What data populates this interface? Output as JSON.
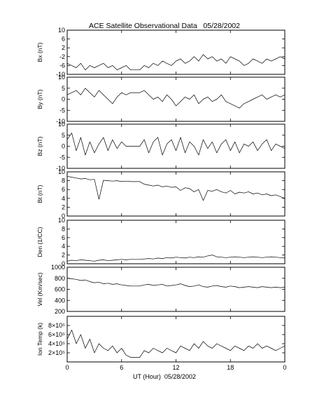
{
  "chart_data": {
    "type": "line",
    "title": "ACE Satellite Observational Data   05/28/2002",
    "xlabel": "UT (Hour)  05/28/2002",
    "x_ticks": [
      "0",
      "6",
      "12",
      "18",
      "0"
    ],
    "xlim": [
      0,
      24
    ],
    "panels": [
      {
        "ylabel": "Bx (nT)",
        "ylim": [
          -10,
          10
        ],
        "y_ticks": [
          "-10",
          "-6",
          "-2",
          "2",
          "6",
          "10"
        ],
        "y_tick_values": [
          -10,
          -6,
          -2,
          2,
          6,
          10
        ],
        "x": [
          0,
          0.5,
          1,
          1.5,
          2,
          2.5,
          3,
          3.5,
          4,
          4.5,
          5,
          5.5,
          6,
          6.5,
          7,
          7.5,
          8,
          8.5,
          9,
          9.5,
          10,
          10.5,
          11,
          11.5,
          12,
          12.5,
          13,
          13.5,
          14,
          14.5,
          15,
          15.5,
          16,
          16.5,
          17,
          17.5,
          18,
          18.5,
          19,
          19.5,
          20,
          20.5,
          21,
          21.5,
          22,
          22.5,
          23,
          23.5,
          24
        ],
        "values": [
          -5,
          -6,
          -7,
          -5,
          -8,
          -6,
          -7,
          -6,
          -5,
          -7,
          -6,
          -8,
          -7,
          -6,
          -8,
          -8,
          -8,
          -6,
          -7,
          -5,
          -6,
          -4,
          -5,
          -6,
          -4,
          -3,
          -5,
          -4,
          -2,
          -4,
          -1,
          -3,
          -2,
          -4,
          -3,
          -5,
          -2,
          -3,
          -4,
          -6,
          -5,
          -3,
          -4,
          -5,
          -3,
          -4,
          -3,
          -2,
          -3
        ]
      },
      {
        "ylabel": "By (nT)",
        "ylim": [
          -10,
          10
        ],
        "y_ticks": [
          "-10",
          "-5",
          "0",
          "5",
          "10"
        ],
        "y_tick_values": [
          -10,
          -5,
          0,
          5,
          10
        ],
        "x": [
          0,
          0.5,
          1,
          1.5,
          2,
          2.5,
          3,
          3.5,
          4,
          4.5,
          5,
          5.5,
          6,
          6.5,
          7,
          7.5,
          8,
          8.5,
          9,
          9.5,
          10,
          10.5,
          11,
          11.5,
          12,
          12.5,
          13,
          13.5,
          14,
          14.5,
          15,
          15.5,
          16,
          16.5,
          17,
          17.5,
          18,
          18.5,
          19,
          19.5,
          20,
          20.5,
          21,
          21.5,
          22,
          22.5,
          23,
          23.5,
          24
        ],
        "values": [
          2,
          3,
          4,
          2,
          5,
          3,
          1,
          4,
          2,
          0,
          -2,
          1,
          3,
          2,
          3,
          3,
          3,
          4,
          2,
          0,
          1,
          -1,
          2,
          0,
          -3,
          -1,
          1,
          0,
          2,
          -2,
          0,
          1,
          -1,
          0,
          2,
          -1,
          -2,
          -3,
          -4,
          -2,
          -1,
          0,
          1,
          2,
          0,
          1,
          2,
          1,
          2
        ]
      },
      {
        "ylabel": "Bz (nT)",
        "ylim": [
          -10,
          10
        ],
        "y_ticks": [
          "-10",
          "-5",
          "0",
          "5",
          "10"
        ],
        "y_tick_values": [
          -10,
          -5,
          0,
          5,
          10
        ],
        "x": [
          0,
          0.5,
          1,
          1.5,
          2,
          2.5,
          3,
          3.5,
          4,
          4.5,
          5,
          5.5,
          6,
          6.5,
          7,
          7.5,
          8,
          8.5,
          9,
          9.5,
          10,
          10.5,
          11,
          11.5,
          12,
          12.5,
          13,
          13.5,
          14,
          14.5,
          15,
          15.5,
          16,
          16.5,
          17,
          17.5,
          18,
          18.5,
          19,
          19.5,
          20,
          20.5,
          21,
          21.5,
          22,
          22.5,
          23,
          23.5,
          24
        ],
        "values": [
          3,
          6,
          -2,
          4,
          -4,
          2,
          -3,
          1,
          4,
          -2,
          3,
          -1,
          2,
          0,
          0,
          0,
          0,
          3,
          -3,
          2,
          4,
          -4,
          1,
          3,
          -2,
          4,
          -3,
          2,
          0,
          -4,
          3,
          -1,
          2,
          -3,
          1,
          3,
          -2,
          2,
          -3,
          1,
          0,
          2,
          -2,
          1,
          3,
          -2,
          1,
          0,
          -1
        ]
      },
      {
        "ylabel": "Bt (nT)",
        "ylim": [
          0,
          10
        ],
        "y_ticks": [
          "0",
          "2",
          "4",
          "6",
          "8",
          "10"
        ],
        "y_tick_values": [
          0,
          2,
          4,
          6,
          8,
          10
        ],
        "x": [
          0,
          0.5,
          1,
          1.5,
          2,
          2.5,
          3,
          3.5,
          4,
          4.5,
          5,
          5.5,
          6,
          6.5,
          7,
          7.5,
          8,
          8.5,
          9,
          9.5,
          10,
          10.5,
          11,
          11.5,
          12,
          12.5,
          13,
          13.5,
          14,
          14.5,
          15,
          15.5,
          16,
          16.5,
          17,
          17.5,
          18,
          18.5,
          19,
          19.5,
          20,
          20.5,
          21,
          21.5,
          22,
          22.5,
          23,
          23.5,
          24
        ],
        "values": [
          9,
          8.8,
          8.6,
          8.4,
          8.5,
          8.2,
          8.3,
          3.8,
          8.1,
          8,
          7.9,
          8,
          7.8,
          7.9,
          7.8,
          7.8,
          7.8,
          7.2,
          7,
          6.8,
          7,
          6.6,
          6.8,
          6.5,
          6.6,
          5.8,
          6.4,
          6.2,
          5.5,
          6,
          3.5,
          5.8,
          5.6,
          6,
          5.5,
          5.2,
          5.8,
          5,
          5.4,
          5.2,
          5.5,
          5,
          5.2,
          4.8,
          5,
          4.6,
          4.8,
          4.4,
          4
        ]
      },
      {
        "ylabel": "Den (1/CC)",
        "ylim": [
          0,
          10
        ],
        "y_ticks": [
          "0",
          "2",
          "4",
          "6",
          "8",
          "10"
        ],
        "y_tick_values": [
          0,
          2,
          4,
          6,
          8,
          10
        ],
        "x": [
          0,
          0.5,
          1,
          1.5,
          2,
          2.5,
          3,
          3.5,
          4,
          4.5,
          5,
          5.5,
          6,
          6.5,
          7,
          7.5,
          8,
          8.5,
          9,
          9.5,
          10,
          10.5,
          11,
          11.5,
          12,
          12.5,
          13,
          13.5,
          14,
          14.5,
          15,
          15.5,
          16,
          16.5,
          17,
          17.5,
          18,
          18.5,
          19,
          19.5,
          20,
          20.5,
          21,
          21.5,
          22,
          22.5,
          23,
          23.5,
          24
        ],
        "values": [
          0.6,
          0.8,
          0.7,
          0.9,
          0.8,
          0.7,
          0.6,
          0.8,
          0.9,
          0.7,
          0.8,
          0.9,
          1,
          0.9,
          1,
          1,
          1,
          1.1,
          1.2,
          1.1,
          1.3,
          1.2,
          1.4,
          1.3,
          1.5,
          1.4,
          1.3,
          1.5,
          1.4,
          1.6,
          1.5,
          1.8,
          2,
          1.6,
          1.5,
          1.4,
          1.5,
          1.6,
          1.5,
          1.4,
          1.5,
          1.6,
          1.5,
          1.4,
          1.5,
          1.6,
          1.5,
          1.4,
          1.3
        ]
      },
      {
        "ylabel": "Vel (Km/sec)",
        "ylim": [
          200,
          1000
        ],
        "y_ticks": [
          "200",
          "400",
          "600",
          "800",
          "1000"
        ],
        "y_tick_values": [
          200,
          400,
          600,
          800,
          1000
        ],
        "x": [
          0,
          0.5,
          1,
          1.5,
          2,
          2.5,
          3,
          3.5,
          4,
          4.5,
          5,
          5.5,
          6,
          6.5,
          7,
          7.5,
          8,
          8.5,
          9,
          9.5,
          10,
          10.5,
          11,
          11.5,
          12,
          12.5,
          13,
          13.5,
          14,
          14.5,
          15,
          15.5,
          16,
          16.5,
          17,
          17.5,
          18,
          18.5,
          19,
          19.5,
          20,
          20.5,
          21,
          21.5,
          22,
          22.5,
          23,
          23.5,
          24
        ],
        "values": [
          800,
          790,
          780,
          760,
          770,
          740,
          720,
          730,
          700,
          710,
          690,
          700,
          680,
          670,
          660,
          660,
          660,
          680,
          690,
          670,
          680,
          690,
          660,
          670,
          680,
          700,
          670,
          650,
          660,
          680,
          650,
          640,
          660,
          670,
          650,
          640,
          660,
          650,
          630,
          640,
          650,
          640,
          630,
          650,
          640,
          630,
          640,
          630,
          640
        ]
      },
      {
        "ylabel": "Ion Temp (k)",
        "ylim": [
          0,
          1000000
        ],
        "y_ticks": [
          "2×10⁵",
          "4×10⁵",
          "6×10⁵",
          "8×10⁵"
        ],
        "y_tick_values": [
          200000,
          400000,
          600000,
          800000
        ],
        "x": [
          0,
          0.5,
          1,
          1.5,
          2,
          2.5,
          3,
          3.5,
          4,
          4.5,
          5,
          5.5,
          6,
          6.5,
          7,
          7.5,
          8,
          8.5,
          9,
          9.5,
          10,
          10.5,
          11,
          11.5,
          12,
          12.5,
          13,
          13.5,
          14,
          14.5,
          15,
          15.5,
          16,
          16.5,
          17,
          17.5,
          18,
          18.5,
          19,
          19.5,
          20,
          20.5,
          21,
          21.5,
          22,
          22.5,
          23,
          23.5,
          24
        ],
        "values": [
          500000,
          700000,
          400000,
          600000,
          300000,
          500000,
          200000,
          400000,
          300000,
          250000,
          350000,
          200000,
          300000,
          150000,
          100000,
          100000,
          100000,
          250000,
          200000,
          300000,
          250000,
          200000,
          300000,
          250000,
          200000,
          350000,
          300000,
          250000,
          400000,
          300000,
          450000,
          350000,
          300000,
          400000,
          350000,
          300000,
          250000,
          350000,
          300000,
          250000,
          350000,
          300000,
          400000,
          300000,
          350000,
          300000,
          250000,
          300000,
          350000
        ]
      }
    ]
  }
}
